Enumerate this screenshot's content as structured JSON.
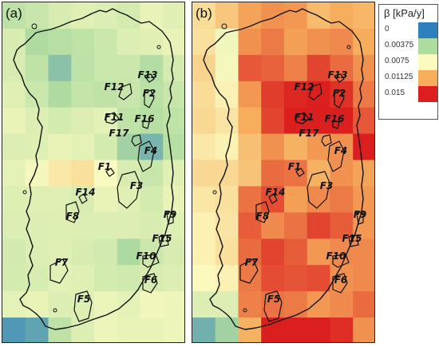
{
  "legend": {
    "title": "β [kPa/y]",
    "items": [
      {
        "label": "0",
        "color": "#2e7fbd"
      },
      {
        "label": "0.00375",
        "color": "#aedba0"
      },
      {
        "label": "0.0075",
        "color": "#fbfbc0"
      },
      {
        "label": "0.01125",
        "color": "#f6ad5c"
      },
      {
        "label": "0.015",
        "color": "#db1f1f"
      }
    ]
  },
  "panels": [
    {
      "label": "(a)"
    },
    {
      "label": "(b)"
    }
  ],
  "features": [
    "F1",
    "F2",
    "F3",
    "F4",
    "F5",
    "F6",
    "F7",
    "F8",
    "F9",
    "F10",
    "F11",
    "F12",
    "F13",
    "F14",
    "F15",
    "F16",
    "F17"
  ],
  "grids": {
    "a": [
      [
        0.0045,
        0.005,
        0.0058,
        0.0062,
        0.006,
        0.0056,
        0.0066,
        0.0062
      ],
      [
        0.0058,
        0.0038,
        0.0042,
        0.0046,
        0.0052,
        0.006,
        0.0062,
        0.0066
      ],
      [
        0.0058,
        0.0046,
        0.0027,
        0.0045,
        0.0051,
        0.0052,
        0.004,
        0.0056
      ],
      [
        0.0062,
        0.0051,
        0.0038,
        0.0048,
        0.0046,
        0.005,
        0.0043,
        0.005
      ],
      [
        0.0066,
        0.006,
        0.0056,
        0.006,
        0.0063,
        0.0046,
        0.0042,
        0.0046
      ],
      [
        0.006,
        0.0061,
        0.0066,
        0.0064,
        0.0056,
        0.0034,
        0.0022,
        0.0042
      ],
      [
        0.0064,
        0.0072,
        0.0084,
        0.0088,
        0.0074,
        0.0058,
        0.005,
        0.0062
      ],
      [
        0.0061,
        0.0062,
        0.0062,
        0.0058,
        0.0066,
        0.0062,
        0.0056,
        0.0066
      ],
      [
        0.006,
        0.006,
        0.0061,
        0.006,
        0.006,
        0.006,
        0.0058,
        0.0061
      ],
      [
        0.0055,
        0.006,
        0.0062,
        0.0058,
        0.0055,
        0.0037,
        0.0052,
        0.0058
      ],
      [
        0.0056,
        0.0057,
        0.0063,
        0.0062,
        0.0056,
        0.0054,
        0.0058,
        0.006
      ],
      [
        0.0064,
        0.0066,
        0.006,
        0.0061,
        0.0067,
        0.0064,
        0.007,
        0.0068
      ],
      [
        0.001,
        0.0015,
        0.0045,
        0.006,
        0.0068,
        0.0066,
        0.0066,
        0.0068
      ]
    ],
    "b": [
      [
        0.009,
        0.01,
        0.0115,
        0.012,
        0.0118,
        0.0106,
        0.0112,
        0.0108
      ],
      [
        0.0088,
        0.007,
        0.012,
        0.0126,
        0.0116,
        0.012,
        0.0122,
        0.0112
      ],
      [
        0.0094,
        0.0072,
        0.0135,
        0.0132,
        0.0124,
        0.014,
        0.013,
        0.012
      ],
      [
        0.009,
        0.008,
        0.0118,
        0.0142,
        0.0148,
        0.015,
        0.0145,
        0.0126
      ],
      [
        0.0092,
        0.0086,
        0.0112,
        0.014,
        0.0152,
        0.015,
        0.015,
        0.0135
      ],
      [
        0.0084,
        0.008,
        0.0104,
        0.012,
        0.011,
        0.0118,
        0.012,
        0.015
      ],
      [
        0.0092,
        0.0092,
        0.0102,
        0.013,
        0.0128,
        0.011,
        0.012,
        0.0115
      ],
      [
        0.0085,
        0.0088,
        0.0128,
        0.0138,
        0.0116,
        0.0122,
        0.0126,
        0.0118
      ],
      [
        0.008,
        0.0086,
        0.0134,
        0.0122,
        0.0128,
        0.014,
        0.0134,
        0.0118
      ],
      [
        0.008,
        0.0088,
        0.013,
        0.014,
        0.0134,
        0.0118,
        0.0122,
        0.0122
      ],
      [
        0.0076,
        0.008,
        0.0126,
        0.0138,
        0.0136,
        0.0138,
        0.012,
        0.0122
      ],
      [
        0.006,
        0.006,
        0.0124,
        0.0128,
        0.0126,
        0.0118,
        0.0122,
        0.013
      ],
      [
        0.002,
        0.0034,
        0.011,
        0.015,
        0.015,
        0.015,
        0.0146,
        0.012
      ]
    ]
  }
}
